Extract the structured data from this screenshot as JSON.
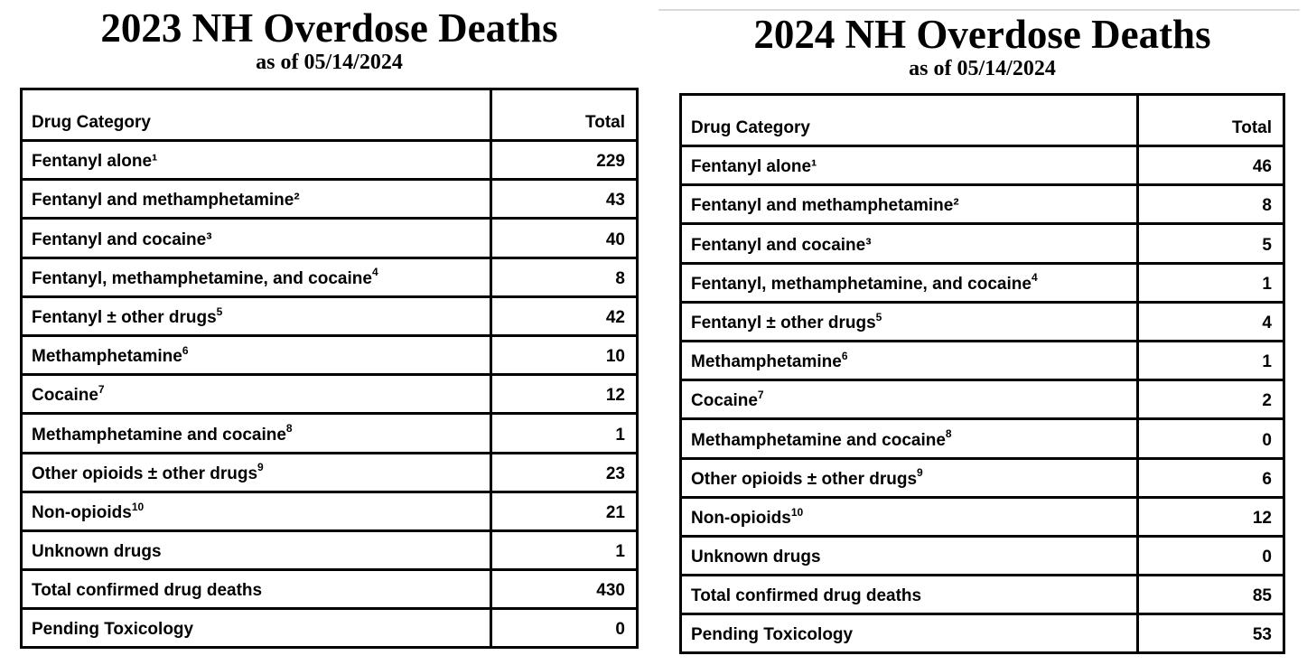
{
  "page": {
    "background_color": "#ffffff",
    "text_color": "#000000",
    "table_border_color": "#000000",
    "top_divider_color": "#d9d9d9"
  },
  "tables": [
    {
      "title": "2023 NH Overdose Deaths",
      "subtitle": "as of 05/14/2024",
      "columns": {
        "category": "Drug Category",
        "total": "Total"
      },
      "rows": [
        {
          "category": "Fentanyl alone¹",
          "sup": "",
          "total": "229"
        },
        {
          "category": "Fentanyl and methamphetamine²",
          "sup": "",
          "total": "43"
        },
        {
          "category": "Fentanyl and cocaine³",
          "sup": "",
          "total": "40"
        },
        {
          "category": "Fentanyl, methamphetamine, and cocaine",
          "sup": "4",
          "total": "8"
        },
        {
          "category": "Fentanyl ± other drugs",
          "sup": "5",
          "total": "42"
        },
        {
          "category": "Methamphetamine",
          "sup": "6",
          "total": "10"
        },
        {
          "category": "Cocaine",
          "sup": "7",
          "total": "12"
        },
        {
          "category": "Methamphetamine and cocaine",
          "sup": "8",
          "total": "1"
        },
        {
          "category": "Other opioids ± other drugs",
          "sup": "9",
          "total": "23"
        },
        {
          "category": "Non-opioids",
          "sup": "10",
          "total": "21"
        },
        {
          "category": "Unknown drugs",
          "sup": "",
          "total": "1"
        },
        {
          "category": "Total confirmed drug deaths",
          "sup": "",
          "total": "430"
        },
        {
          "category": "Pending Toxicology",
          "sup": "",
          "total": "0"
        }
      ]
    },
    {
      "title": "2024 NH Overdose Deaths",
      "subtitle": "as of 05/14/2024",
      "columns": {
        "category": "Drug Category",
        "total": "Total"
      },
      "rows": [
        {
          "category": "Fentanyl alone¹",
          "sup": "",
          "total": "46"
        },
        {
          "category": "Fentanyl and methamphetamine²",
          "sup": "",
          "total": "8"
        },
        {
          "category": "Fentanyl and cocaine³",
          "sup": "",
          "total": "5"
        },
        {
          "category": "Fentanyl, methamphetamine, and cocaine",
          "sup": "4",
          "total": "1"
        },
        {
          "category": "Fentanyl ± other drugs",
          "sup": "5",
          "total": "4"
        },
        {
          "category": "Methamphetamine",
          "sup": "6",
          "total": "1"
        },
        {
          "category": "Cocaine",
          "sup": "7",
          "total": "2"
        },
        {
          "category": "Methamphetamine and cocaine",
          "sup": "8",
          "total": "0"
        },
        {
          "category": "Other opioids ± other drugs",
          "sup": "9",
          "total": "6"
        },
        {
          "category": "Non-opioids",
          "sup": "10",
          "total": "12"
        },
        {
          "category": "Unknown drugs",
          "sup": "",
          "total": "0"
        },
        {
          "category": "Total confirmed drug deaths",
          "sup": "",
          "total": "85"
        },
        {
          "category": "Pending Toxicology",
          "sup": "",
          "total": "53"
        }
      ]
    }
  ]
}
